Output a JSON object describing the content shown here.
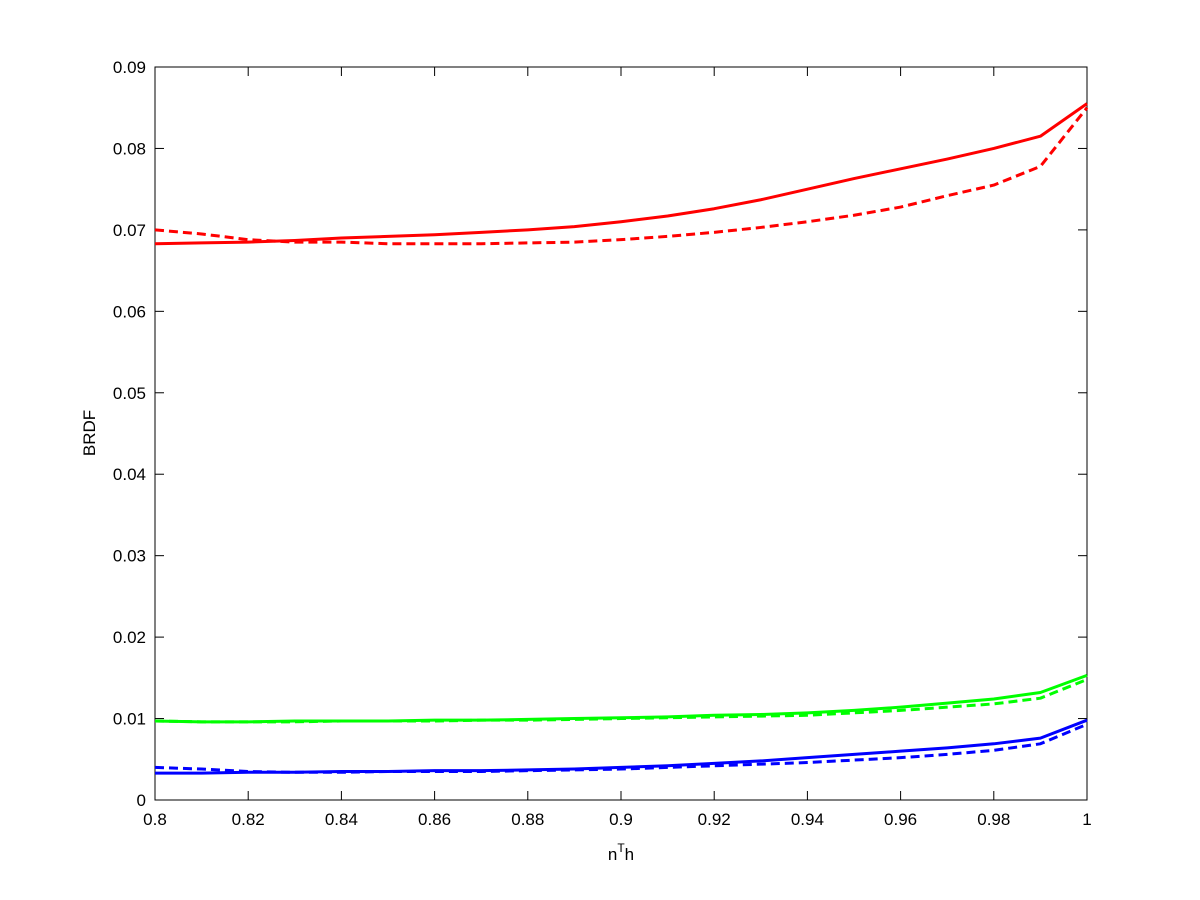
{
  "chart_data": {
    "type": "line",
    "x_label": [
      "n",
      "T",
      "h"
    ],
    "y_label": "BRDF",
    "x": [
      0.8,
      0.81,
      0.82,
      0.83,
      0.84,
      0.85,
      0.86,
      0.87,
      0.88,
      0.89,
      0.9,
      0.91,
      0.92,
      0.93,
      0.94,
      0.95,
      0.96,
      0.97,
      0.98,
      0.99,
      1.0
    ],
    "series": [
      {
        "color": "#ff0000",
        "dashed": false,
        "values": [
          0.0683,
          0.0684,
          0.0685,
          0.0687,
          0.069,
          0.0692,
          0.0694,
          0.0697,
          0.07,
          0.0704,
          0.071,
          0.0717,
          0.0726,
          0.0737,
          0.075,
          0.0763,
          0.0775,
          0.0787,
          0.08,
          0.0815,
          0.0855
        ]
      },
      {
        "color": "#ff0000",
        "dashed": true,
        "values": [
          0.07,
          0.0695,
          0.0688,
          0.0685,
          0.0685,
          0.0683,
          0.0683,
          0.0683,
          0.0684,
          0.0685,
          0.0688,
          0.0692,
          0.0697,
          0.0703,
          0.071,
          0.0718,
          0.0728,
          0.0742,
          0.0755,
          0.0778,
          0.085
        ]
      },
      {
        "color": "#00ff00",
        "dashed": false,
        "values": [
          0.0097,
          0.0096,
          0.0096,
          0.0097,
          0.0097,
          0.0097,
          0.0098,
          0.0098,
          0.0099,
          0.01,
          0.0101,
          0.0102,
          0.0104,
          0.0105,
          0.0107,
          0.011,
          0.0114,
          0.0119,
          0.0124,
          0.0132,
          0.0153
        ]
      },
      {
        "color": "#00ff00",
        "dashed": true,
        "values": [
          0.0097,
          0.0096,
          0.0096,
          0.0096,
          0.0097,
          0.0097,
          0.0097,
          0.0098,
          0.0098,
          0.0099,
          0.01,
          0.0101,
          0.0102,
          0.0103,
          0.0104,
          0.0107,
          0.011,
          0.0114,
          0.0118,
          0.0125,
          0.0148
        ]
      },
      {
        "color": "#0000ff",
        "dashed": false,
        "values": [
          0.0033,
          0.0033,
          0.0034,
          0.0034,
          0.0035,
          0.0035,
          0.0036,
          0.0036,
          0.0037,
          0.0038,
          0.004,
          0.0042,
          0.0045,
          0.0048,
          0.0052,
          0.0056,
          0.006,
          0.0064,
          0.0069,
          0.0076,
          0.0098
        ]
      },
      {
        "color": "#0000ff",
        "dashed": true,
        "values": [
          0.004,
          0.0038,
          0.0035,
          0.0034,
          0.0034,
          0.0035,
          0.0035,
          0.0035,
          0.0036,
          0.0037,
          0.0038,
          0.004,
          0.0042,
          0.0044,
          0.0046,
          0.0049,
          0.0052,
          0.0056,
          0.0061,
          0.0069,
          0.0093
        ]
      }
    ],
    "xlim": [
      0.8,
      1
    ],
    "xticks": [
      0.8,
      0.82,
      0.84,
      0.86,
      0.88,
      0.9,
      0.92,
      0.94,
      0.96,
      0.98,
      1
    ],
    "ylim": [
      0,
      0.09
    ],
    "yticks": [
      0,
      0.01,
      0.02,
      0.03,
      0.04,
      0.05,
      0.06,
      0.07,
      0.08,
      0.09
    ],
    "grid": false
  }
}
